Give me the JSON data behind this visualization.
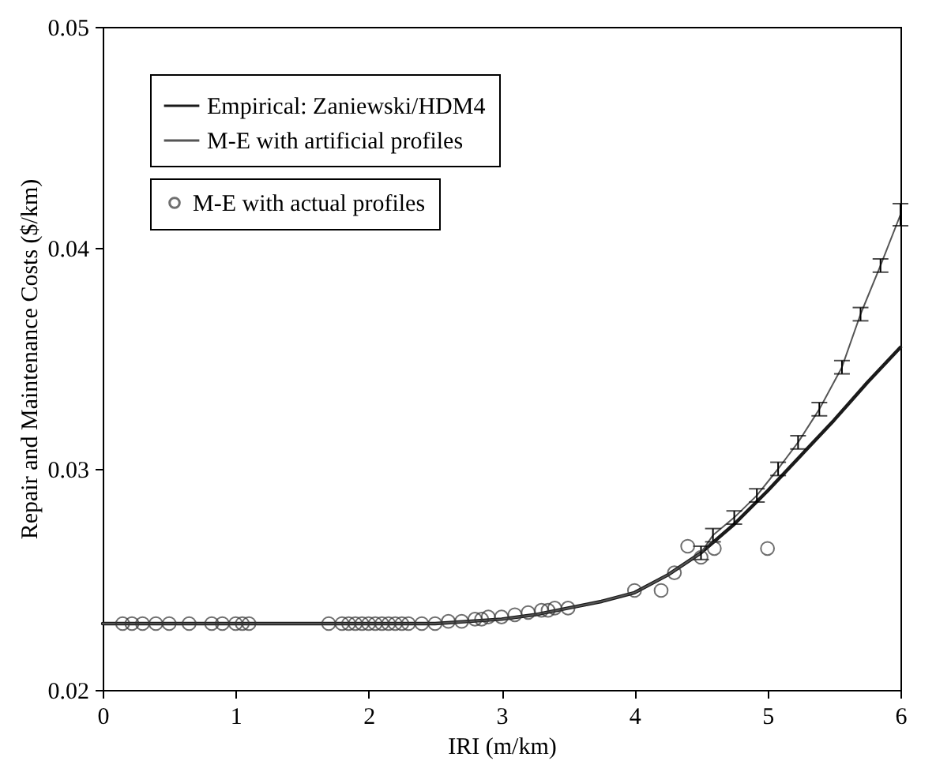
{
  "chart_data": {
    "type": "line",
    "xlabel": "IRI (m/km)",
    "ylabel": "Repair and Maintenance Costs ($/km)",
    "xlim": [
      0,
      6
    ],
    "ylim": [
      0.02,
      0.05
    ],
    "xticks": [
      0,
      1,
      2,
      3,
      4,
      5,
      6
    ],
    "yticks": [
      0.02,
      0.03,
      0.04,
      0.05
    ],
    "grid": false,
    "legend": "top left",
    "series": [
      {
        "name": "Empirical: Zaniewski/HDM4",
        "color": "#1a1a1a",
        "x": [
          0,
          1,
          2,
          2.5,
          3,
          3.25,
          3.5,
          3.75,
          4,
          4.25,
          4.5,
          4.75,
          5,
          5.25,
          5.5,
          5.75,
          6
        ],
        "values": [
          0.023,
          0.023,
          0.023,
          0.023,
          0.0232,
          0.0234,
          0.0237,
          0.024,
          0.0244,
          0.0252,
          0.0262,
          0.0275,
          0.029,
          0.0306,
          0.0322,
          0.0339,
          0.0355
        ]
      },
      {
        "name": "M-E with artificial profiles",
        "color": "#555555",
        "x": [
          0,
          1,
          2,
          2.5,
          3,
          3.25,
          3.5,
          3.75,
          4,
          4.25,
          4.5,
          4.59,
          4.75,
          4.92,
          5.08,
          5.23,
          5.39,
          5.56,
          5.7,
          5.85,
          6
        ],
        "values": [
          0.023,
          0.023,
          0.023,
          0.023,
          0.0232,
          0.0234,
          0.0237,
          0.024,
          0.0244,
          0.0252,
          0.0262,
          0.027,
          0.0278,
          0.0288,
          0.03,
          0.0312,
          0.0327,
          0.0346,
          0.037,
          0.0392,
          0.0415
        ],
        "errors": [
          null,
          null,
          null,
          null,
          null,
          null,
          null,
          null,
          null,
          null,
          0.0003,
          0.0003,
          0.0003,
          0.0003,
          0.0003,
          0.0003,
          0.0003,
          0.0003,
          0.0003,
          0.0003,
          0.0005
        ]
      },
      {
        "name": "M-E with actual profiles",
        "type": "scatter",
        "color": "#333333",
        "marker": "circle",
        "x": [
          0.15,
          0.22,
          0.3,
          0.4,
          0.5,
          0.65,
          0.82,
          0.9,
          1.0,
          1.05,
          1.1,
          1.7,
          1.8,
          1.85,
          1.9,
          1.95,
          2.0,
          2.05,
          2.1,
          2.15,
          2.2,
          2.25,
          2.3,
          2.4,
          2.5,
          2.6,
          2.7,
          2.8,
          2.85,
          2.9,
          3.0,
          3.1,
          3.2,
          3.3,
          3.35,
          3.4,
          3.5,
          4.0,
          4.2,
          4.3,
          4.4,
          4.5,
          4.6,
          5.0
        ],
        "values": [
          0.023,
          0.023,
          0.023,
          0.023,
          0.023,
          0.023,
          0.023,
          0.023,
          0.023,
          0.023,
          0.023,
          0.023,
          0.023,
          0.023,
          0.023,
          0.023,
          0.023,
          0.023,
          0.023,
          0.023,
          0.023,
          0.023,
          0.023,
          0.023,
          0.023,
          0.0231,
          0.0231,
          0.0232,
          0.0232,
          0.0233,
          0.0233,
          0.0234,
          0.0235,
          0.0236,
          0.0236,
          0.0237,
          0.0237,
          0.0245,
          0.0245,
          0.0253,
          0.0265,
          0.026,
          0.0264,
          0.0264
        ]
      }
    ]
  }
}
